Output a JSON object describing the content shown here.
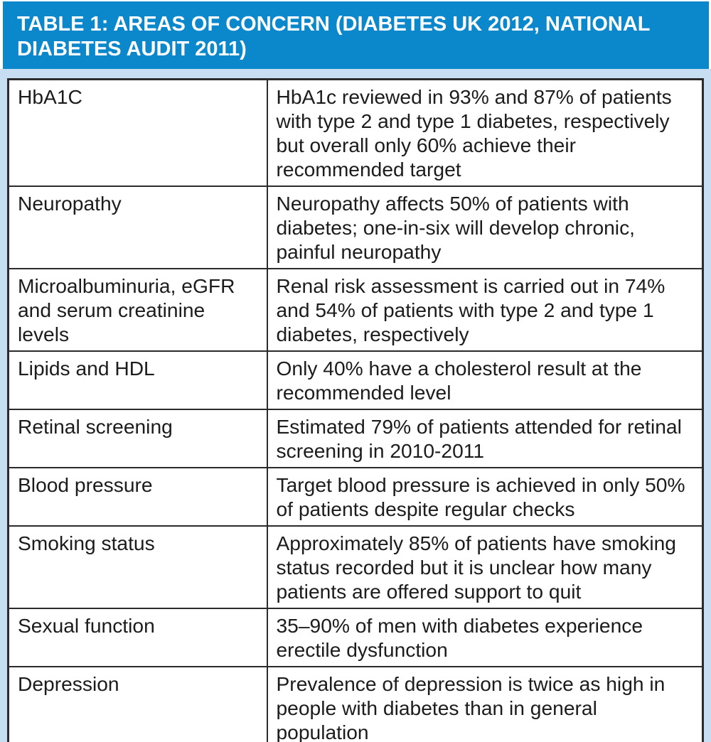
{
  "header": {
    "title": "TABLE 1: AREAS OF CONCERN (DIABETES UK 2012, NATIONAL DIABETES AUDIT 2011)"
  },
  "table": {
    "rows": [
      {
        "area": "HbA1C",
        "detail": "HbA1c reviewed in 93% and 87% of patients with type 2 and type 1 diabetes, respectively but overall only 60% achieve their recommended target"
      },
      {
        "area": "Neuropathy",
        "detail": "Neuropathy affects 50% of patients with diabetes; one-in-six will develop chronic, painful neuropathy"
      },
      {
        "area": "Microalbuminuria, eGFR and serum creatinine levels",
        "detail": "Renal risk assessment is carried out in 74% and 54% of patients with type 2 and type 1 diabetes, respectively"
      },
      {
        "area": "Lipids and HDL",
        "detail": "Only 40% have a cholesterol result at the recommended level"
      },
      {
        "area": "Retinal screening",
        "detail": "Estimated 79% of patients attended for retinal screening in 2010-2011"
      },
      {
        "area": "Blood pressure",
        "detail": "Target blood pressure is achieved in only 50% of patients despite regular checks"
      },
      {
        "area": "Smoking status",
        "detail": "Approximately 85% of patients have smoking status recorded but it is unclear how many patients are offered support to quit"
      },
      {
        "area": "Sexual function",
        "detail": "35–90% of men with diabetes experience erectile dysfunction"
      },
      {
        "area": "Depression",
        "detail": "Prevalence of depression is twice as high in people with diabetes than in general population"
      }
    ]
  },
  "colors": {
    "header_bg": "#0b87cb",
    "header_text": "#ffffff",
    "panel_bg": "#c7ddf2",
    "table_bg": "#ffffff",
    "border": "#2b2b2b",
    "body_text": "#1c1c1c"
  }
}
